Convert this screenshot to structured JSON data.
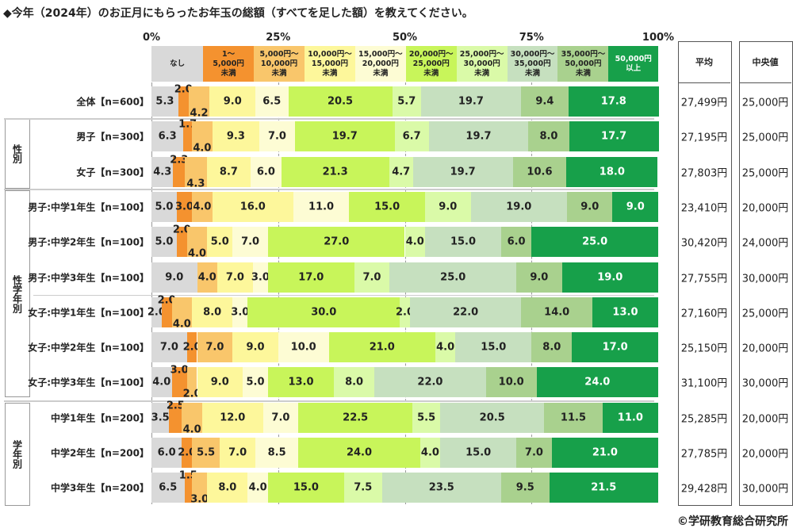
{
  "chart_data": {
    "type": "bar",
    "orientation": "horizontal-stacked-100",
    "title": "◆今年（2024年）のお正月にもらったお年玉の総額（すべてを足した額）を教えてください。",
    "xlim": [
      0,
      100
    ],
    "ticks": [
      "0%",
      "25%",
      "50%",
      "75%",
      "100%"
    ],
    "grid": true,
    "legend_placement": "top",
    "legend": [
      "なし",
      "1～\n5,000円\n未満",
      "5,000円～\n10,000円\n未満",
      "10,000円～\n15,000円\n未満",
      "15,000円～\n20,000円\n未満",
      "20,000円～\n25,000円\n未満",
      "25,000円～\n30,000円\n未満",
      "30,000円～\n35,000円\n未満",
      "35,000円～\n50,000円\n未満",
      "50,000円\n以上"
    ],
    "colors": [
      "#d9d9d9",
      "#f4922f",
      "#f9c66b",
      "#fdf79b",
      "#fdfcd4",
      "#c8f55a",
      "#dafaa8",
      "#c6e0bf",
      "#a9d18e",
      "#17a04a"
    ],
    "categories": [
      "全体【n=600】",
      "男子【n=300】",
      "女子【n=300】",
      "男子:中学1年生【n=100】",
      "男子:中学2年生【n=100】",
      "男子:中学3年生【n=100】",
      "女子:中学1年生【n=100】",
      "女子:中学2年生【n=100】",
      "女子:中学3年生【n=100】",
      "中学1年生【n=200】",
      "中学2年生【n=200】",
      "中学3年生【n=200】"
    ],
    "values": [
      [
        5.3,
        2.0,
        4.2,
        9.0,
        6.5,
        20.5,
        5.7,
        19.7,
        9.4,
        17.8
      ],
      [
        6.3,
        1.7,
        4.0,
        9.3,
        7.0,
        19.7,
        6.7,
        19.7,
        8.0,
        17.7
      ],
      [
        4.3,
        2.3,
        4.3,
        8.7,
        6.0,
        21.3,
        4.7,
        19.7,
        10.6,
        18.0
      ],
      [
        5.0,
        3.0,
        4.0,
        16.0,
        11.0,
        15.0,
        9.0,
        19.0,
        9.0,
        9.0
      ],
      [
        5.0,
        2.0,
        4.0,
        5.0,
        7.0,
        27.0,
        4.0,
        15.0,
        6.0,
        25.0
      ],
      [
        9.0,
        0,
        4.0,
        7.0,
        3.0,
        17.0,
        7.0,
        25.0,
        9.0,
        19.0
      ],
      [
        2.0,
        2.0,
        4.0,
        8.0,
        3.0,
        30.0,
        2.0,
        22.0,
        14.0,
        13.0
      ],
      [
        7.0,
        2.0,
        7.0,
        9.0,
        10.0,
        21.0,
        4.0,
        15.0,
        8.0,
        17.0
      ],
      [
        4.0,
        3.0,
        2.0,
        9.0,
        5.0,
        13.0,
        8.0,
        22.0,
        10.0,
        24.0
      ],
      [
        3.5,
        2.5,
        4.0,
        12.0,
        7.0,
        22.5,
        5.5,
        20.5,
        11.5,
        11.0
      ],
      [
        6.0,
        2.0,
        5.5,
        7.0,
        8.5,
        24.0,
        4.0,
        15.0,
        7.0,
        21.0
      ],
      [
        6.5,
        1.5,
        3.0,
        8.0,
        4.0,
        15.0,
        7.5,
        23.5,
        9.5,
        21.5
      ]
    ],
    "groups": [
      "性別",
      "性学年別",
      "学年別"
    ],
    "mean_header": "平均",
    "median_header": "中央値",
    "mean": [
      "27,499円",
      "27,195円",
      "27,803円",
      "23,410円",
      "30,420円",
      "27,755円",
      "27,160円",
      "25,150円",
      "31,100円",
      "25,285円",
      "27,785円",
      "29,428円"
    ],
    "median": [
      "25,000円",
      "25,000円",
      "25,000円",
      "20,000円",
      "24,000円",
      "30,000円",
      "25,000円",
      "20,000円",
      "30,000円",
      "20,000円",
      "20,000円",
      "30,000円"
    ]
  },
  "credit": "©学研教育総合研究所"
}
